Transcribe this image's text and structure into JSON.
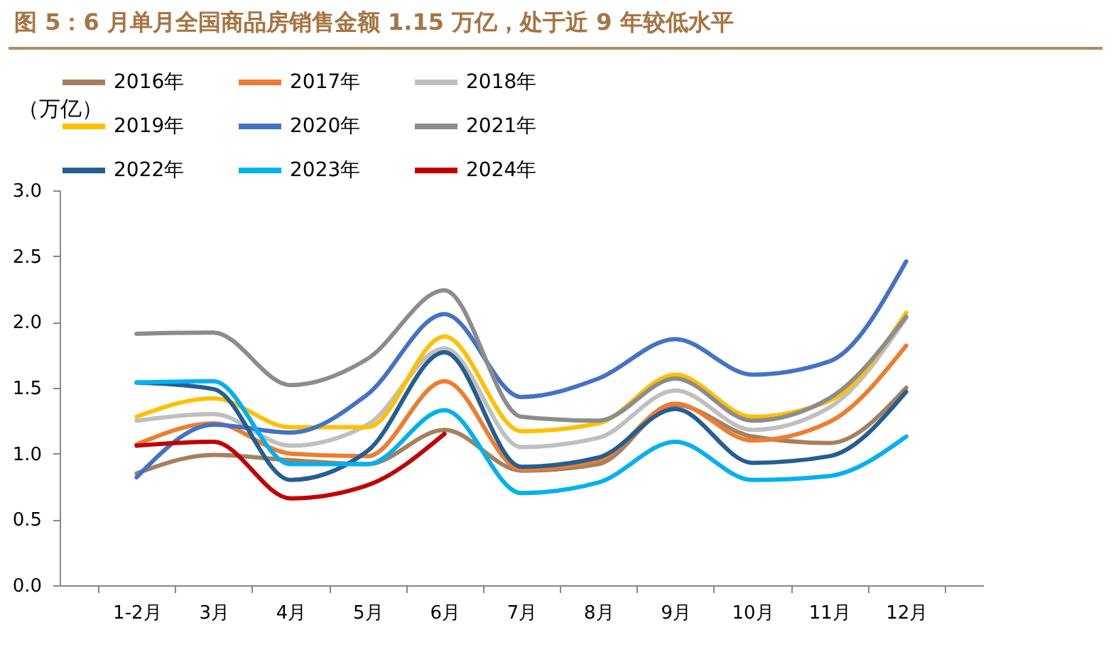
{
  "chart_data": {
    "type": "line",
    "title": "图 5：6 月单月全国商品房销售金额 1.15 万亿，处于近 9 年较低水平",
    "ylabel": "（万亿）",
    "categories": [
      "1-2月",
      "3月",
      "4月",
      "5月",
      "6月",
      "7月",
      "8月",
      "9月",
      "10月",
      "11月",
      "12月"
    ],
    "ylim": [
      0,
      3
    ],
    "yticks": [
      {
        "value": 0,
        "label": "0.0"
      },
      {
        "value": 0.5,
        "label": "0.5"
      },
      {
        "value": 1,
        "label": "1.0"
      },
      {
        "value": 1.5,
        "label": "1.5"
      },
      {
        "value": 2,
        "label": "2.0"
      },
      {
        "value": 2.5,
        "label": "2.5"
      },
      {
        "value": 3,
        "label": "3.0"
      }
    ],
    "grid": false,
    "legend": "top",
    "marker": "none",
    "line_style": "solid",
    "series": [
      {
        "name": "2016年",
        "color": "#a5805e",
        "values": [
          0.85,
          0.99,
          0.95,
          0.92,
          1.18,
          0.87,
          0.92,
          1.37,
          1.13,
          1.08,
          1.5
        ]
      },
      {
        "name": "2017年",
        "color": "#ed7d31",
        "values": [
          1.07,
          1.23,
          1.0,
          0.98,
          1.55,
          0.88,
          0.95,
          1.38,
          1.1,
          1.24,
          1.82
        ]
      },
      {
        "name": "2018年",
        "color": "#bfbfbf",
        "values": [
          1.25,
          1.3,
          1.06,
          1.22,
          1.8,
          1.05,
          1.12,
          1.48,
          1.18,
          1.35,
          2.03
        ]
      },
      {
        "name": "2019年",
        "color": "#ffc000",
        "values": [
          1.28,
          1.42,
          1.2,
          1.2,
          1.89,
          1.17,
          1.23,
          1.6,
          1.28,
          1.4,
          2.07
        ]
      },
      {
        "name": "2020年",
        "color": "#4472c4",
        "values": [
          0.82,
          1.22,
          1.16,
          1.45,
          2.06,
          1.43,
          1.57,
          1.87,
          1.6,
          1.7,
          2.46
        ]
      },
      {
        "name": "2021年",
        "color": "#8c8c8c",
        "values": [
          1.91,
          1.92,
          1.52,
          1.72,
          2.24,
          1.28,
          1.25,
          1.57,
          1.25,
          1.42,
          2.04
        ]
      },
      {
        "name": "2022年",
        "color": "#255e91",
        "values": [
          1.54,
          1.49,
          0.8,
          1.02,
          1.77,
          0.9,
          0.97,
          1.34,
          0.93,
          0.98,
          1.47
        ]
      },
      {
        "name": "2023年",
        "color": "#00b0f0",
        "values": [
          1.54,
          1.55,
          0.92,
          0.92,
          1.33,
          0.7,
          0.78,
          1.09,
          0.8,
          0.83,
          1.13
        ]
      },
      {
        "name": "2024年",
        "color": "#c00000",
        "values": [
          1.06,
          1.09,
          0.66,
          0.76,
          1.15,
          null,
          null,
          null,
          null,
          null,
          null
        ]
      }
    ]
  }
}
